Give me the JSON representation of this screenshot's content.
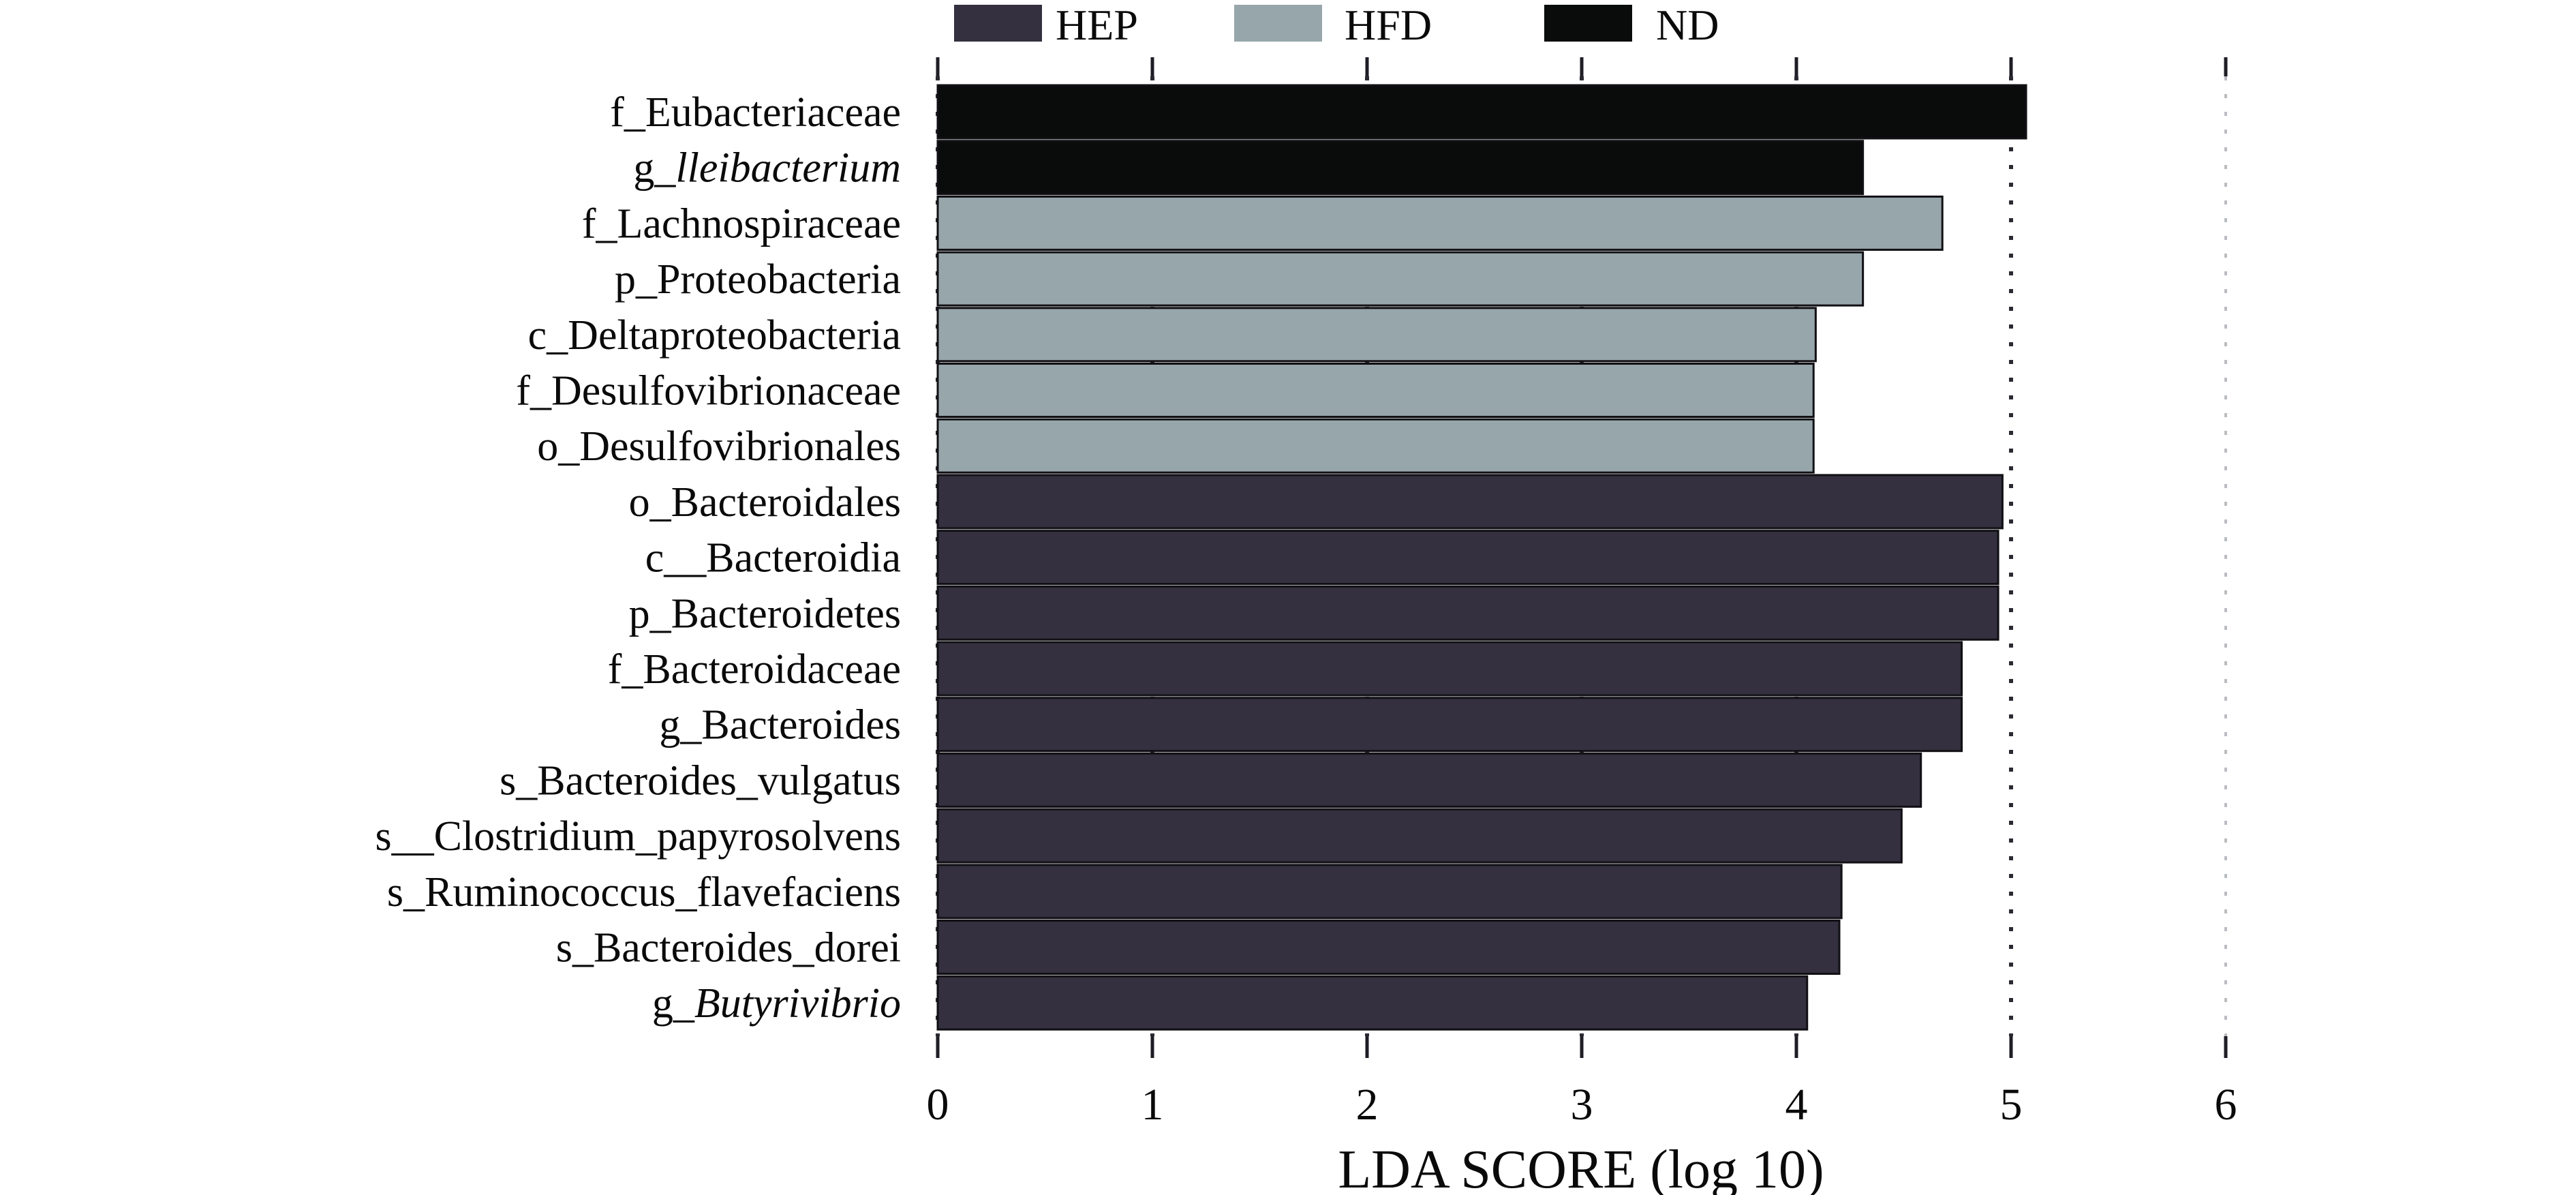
{
  "chart_data": {
    "type": "bar",
    "orientation": "horizontal",
    "title": "",
    "xlabel": "LDA SCORE (log 10)",
    "ylabel": "",
    "xlim": [
      0,
      6
    ],
    "xticks": [
      "0",
      "1",
      "2",
      "3",
      "4",
      "5",
      "6"
    ],
    "grid": "vertical dotted lines at integer ticks",
    "legend_position": "top",
    "legend": [
      {
        "name": "HEP",
        "color": "#34303f"
      },
      {
        "name": "HFD",
        "color": "#97a6ab"
      },
      {
        "name": "ND",
        "color": "#0a0b0b"
      }
    ],
    "categories": [
      {
        "prefix": "f_",
        "name": "Eubacteriaceae",
        "italic": false,
        "group": "ND",
        "value": 5.07
      },
      {
        "prefix": "g_",
        "name": "lleibacterium",
        "italic": true,
        "group": "ND",
        "value": 4.31
      },
      {
        "prefix": "f_",
        "name": "Lachnospiraceae",
        "italic": false,
        "group": "HFD",
        "value": 4.68
      },
      {
        "prefix": "p_",
        "name": "Proteobacteria",
        "italic": false,
        "group": "HFD",
        "value": 4.31
      },
      {
        "prefix": "c_",
        "name": "Deltaproteobacteria",
        "italic": false,
        "group": "HFD",
        "value": 4.09
      },
      {
        "prefix": "f_",
        "name": "Desulfovibrionaceae",
        "italic": false,
        "group": "HFD",
        "value": 4.08
      },
      {
        "prefix": "o_",
        "name": "Desulfovibrionales",
        "italic": false,
        "group": "HFD",
        "value": 4.08
      },
      {
        "prefix": "o_",
        "name": "Bacteroidales",
        "italic": false,
        "group": "HEP",
        "value": 4.96
      },
      {
        "prefix": "c__",
        "name": "Bacteroidia",
        "italic": false,
        "group": "HEP",
        "value": 4.94
      },
      {
        "prefix": "p_",
        "name": "Bacteroidetes",
        "italic": false,
        "group": "HEP",
        "value": 4.94
      },
      {
        "prefix": "f_",
        "name": "Bacteroidaceae",
        "italic": false,
        "group": "HEP",
        "value": 4.77
      },
      {
        "prefix": "g_",
        "name": "Bacteroides",
        "italic": false,
        "group": "HEP",
        "value": 4.77
      },
      {
        "prefix": "s_",
        "name": "Bacteroides_vulgatus",
        "italic": false,
        "group": "HEP",
        "value": 4.58
      },
      {
        "prefix": "s__",
        "name": "Clostridium_papyrosolvens",
        "italic": false,
        "group": "HEP",
        "value": 4.49
      },
      {
        "prefix": "s_",
        "name": "Ruminococcus_flavefaciens",
        "italic": false,
        "group": "HEP",
        "value": 4.21
      },
      {
        "prefix": "s_",
        "name": "Bacteroides_dorei",
        "italic": false,
        "group": "HEP",
        "value": 4.2
      },
      {
        "prefix": "g_",
        "name": "Butyrivibrio",
        "italic": true,
        "group": "HEP",
        "value": 4.05
      }
    ]
  }
}
